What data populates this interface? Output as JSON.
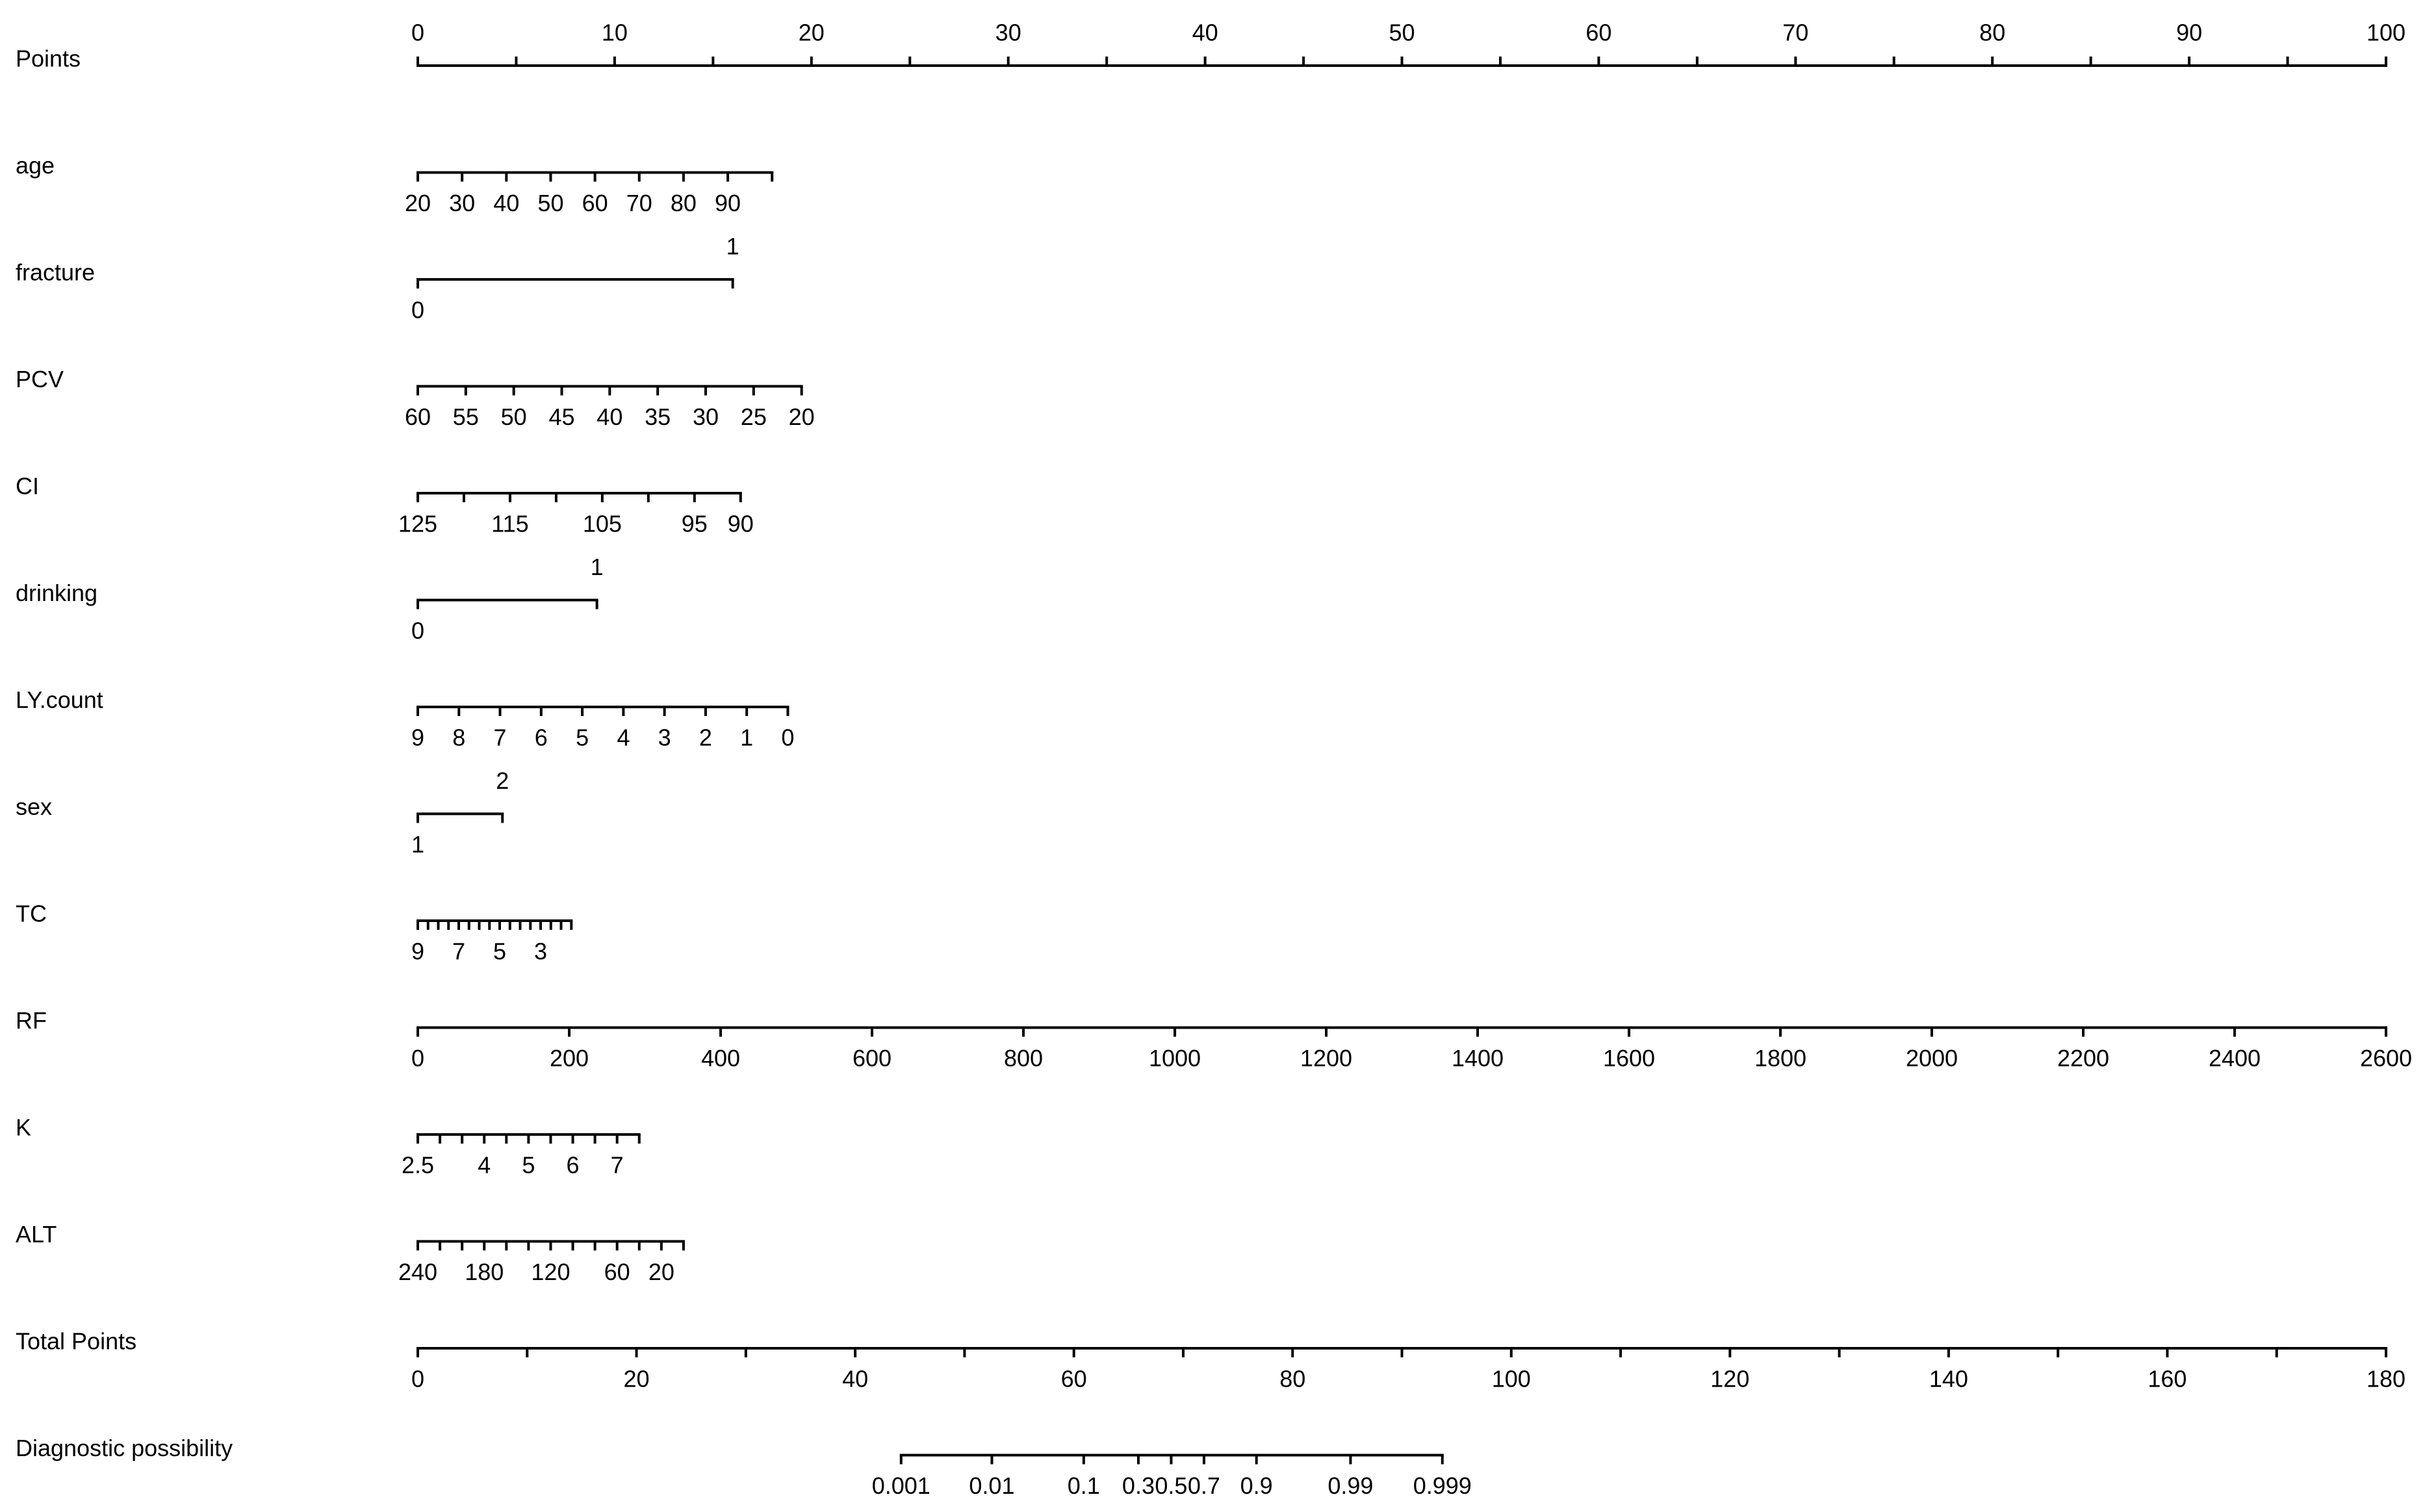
{
  "chart_data": {
    "type": "nomogram",
    "rows": [
      {
        "name": "Points",
        "labels": "above",
        "scale": {
          "values": [
            0,
            100
          ],
          "points": [
            0,
            100
          ]
        },
        "ticks": [
          0,
          10,
          20,
          30,
          40,
          50,
          60,
          70,
          80,
          90,
          100
        ],
        "minor_ticks": [
          5,
          15,
          25,
          35,
          45,
          55,
          65,
          75,
          85,
          95
        ]
      },
      {
        "name": "age",
        "labels": "below",
        "scale": {
          "values": [
            20,
            100
          ],
          "points": [
            0,
            18
          ]
        },
        "ticks": [
          20,
          30,
          40,
          50,
          60,
          70,
          80,
          90
        ],
        "minor_ticks": [
          100
        ]
      },
      {
        "name": "fracture",
        "labels": "split",
        "scale": {
          "values": [
            0,
            1
          ],
          "points": [
            0,
            16
          ]
        },
        "ticks": [
          0,
          1
        ],
        "minor_ticks": []
      },
      {
        "name": "PCV",
        "labels": "below",
        "scale": {
          "values": [
            60,
            20
          ],
          "points": [
            0,
            19.5
          ]
        },
        "ticks": [
          60,
          55,
          50,
          45,
          40,
          35,
          30,
          25,
          20
        ],
        "minor_ticks": []
      },
      {
        "name": "CI",
        "labels": "below",
        "scale": {
          "values": [
            125,
            90
          ],
          "points": [
            0,
            16.4
          ]
        },
        "ticks": [
          125,
          115,
          105,
          95,
          90
        ],
        "minor_ticks": [
          120,
          110,
          100
        ]
      },
      {
        "name": "drinking",
        "labels": "split",
        "scale": {
          "values": [
            0,
            1
          ],
          "points": [
            0,
            9.1
          ]
        },
        "ticks": [
          0,
          1
        ],
        "minor_ticks": []
      },
      {
        "name": "LY.count",
        "labels": "below",
        "scale": {
          "values": [
            9,
            0
          ],
          "points": [
            0,
            18.8
          ]
        },
        "ticks": [
          9,
          8,
          7,
          6,
          5,
          4,
          3,
          2,
          1,
          0
        ],
        "minor_ticks": []
      },
      {
        "name": "sex",
        "labels": "split",
        "scale": {
          "values": [
            1,
            2
          ],
          "points": [
            0,
            4.3
          ]
        },
        "ticks": [
          1,
          2
        ],
        "minor_ticks": []
      },
      {
        "name": "TC",
        "labels": "below",
        "scale": {
          "values": [
            9,
            1.5
          ],
          "points": [
            0,
            7.8
          ]
        },
        "ticks": [
          9,
          7,
          5,
          3
        ],
        "minor_ticks": [
          8.5,
          8,
          7.5,
          6.5,
          6,
          5.5,
          4.5,
          4,
          3.5,
          2.5,
          2,
          1.5
        ]
      },
      {
        "name": "RF",
        "labels": "below",
        "scale": {
          "values": [
            0,
            2600
          ],
          "points": [
            0,
            100
          ]
        },
        "ticks": [
          0,
          200,
          400,
          600,
          800,
          1000,
          1200,
          1400,
          1600,
          1800,
          2000,
          2200,
          2400,
          2600
        ],
        "minor_ticks": []
      },
      {
        "name": "K",
        "labels": "below",
        "scale": {
          "values": [
            2.5,
            7.5
          ],
          "points": [
            0,
            11.25
          ]
        },
        "ticks": [
          2.5,
          4,
          5,
          6,
          7
        ],
        "minor_ticks": [
          3,
          3.5,
          4.5,
          5.5,
          6.5,
          7.5
        ]
      },
      {
        "name": "ALT",
        "labels": "below",
        "scale": {
          "values": [
            240,
            0
          ],
          "points": [
            0,
            13.5
          ]
        },
        "ticks": [
          240,
          180,
          120,
          60,
          20
        ],
        "minor_ticks": [
          220,
          200,
          160,
          140,
          100,
          80,
          40,
          0
        ]
      },
      {
        "name": "Total Points",
        "labels": "below",
        "scale": {
          "values": [
            0,
            180
          ],
          "points": [
            0,
            100
          ]
        },
        "ticks": [
          0,
          20,
          40,
          60,
          80,
          100,
          120,
          140,
          160,
          180
        ],
        "minor_ticks": [
          10,
          30,
          50,
          70,
          90,
          110,
          130,
          150,
          170
        ]
      },
      {
        "name": "Diagnostic possibility",
        "labels": "below",
        "ticks": [
          0.001,
          0.01,
          0.1,
          0.3,
          0.5,
          0.7,
          0.9,
          0.99,
          0.999
        ],
        "total_points": [
          44.2,
          52.5,
          60.9,
          65.9,
          68.9,
          71.9,
          76.7,
          85.3,
          93.7
        ]
      }
    ]
  }
}
